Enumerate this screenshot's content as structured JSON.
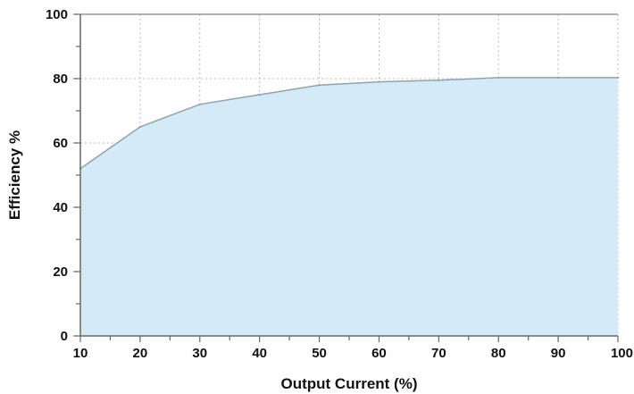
{
  "chart_data": {
    "type": "area",
    "title": "",
    "xlabel": "Output Current (%)",
    "ylabel": "Efficiency %",
    "x": [
      10,
      20,
      30,
      40,
      50,
      60,
      70,
      80,
      90,
      100
    ],
    "series": [
      {
        "values": [
          52,
          65,
          72,
          75,
          78,
          79,
          79.5,
          80.3,
          80.3,
          80.3
        ]
      }
    ],
    "xlim": [
      10,
      100
    ],
    "ylim": [
      0,
      100
    ],
    "xticks": [
      "10",
      "20",
      "30",
      "40",
      "50",
      "60",
      "70",
      "80",
      "90",
      "100"
    ],
    "yticks": [
      "0",
      "20",
      "40",
      "60",
      "80",
      "100"
    ],
    "grid": true,
    "colors": {
      "fill": "#d4eaf6",
      "line": "#8aa4b4",
      "grid": "#b8b8b8",
      "axis": "#666666"
    }
  }
}
